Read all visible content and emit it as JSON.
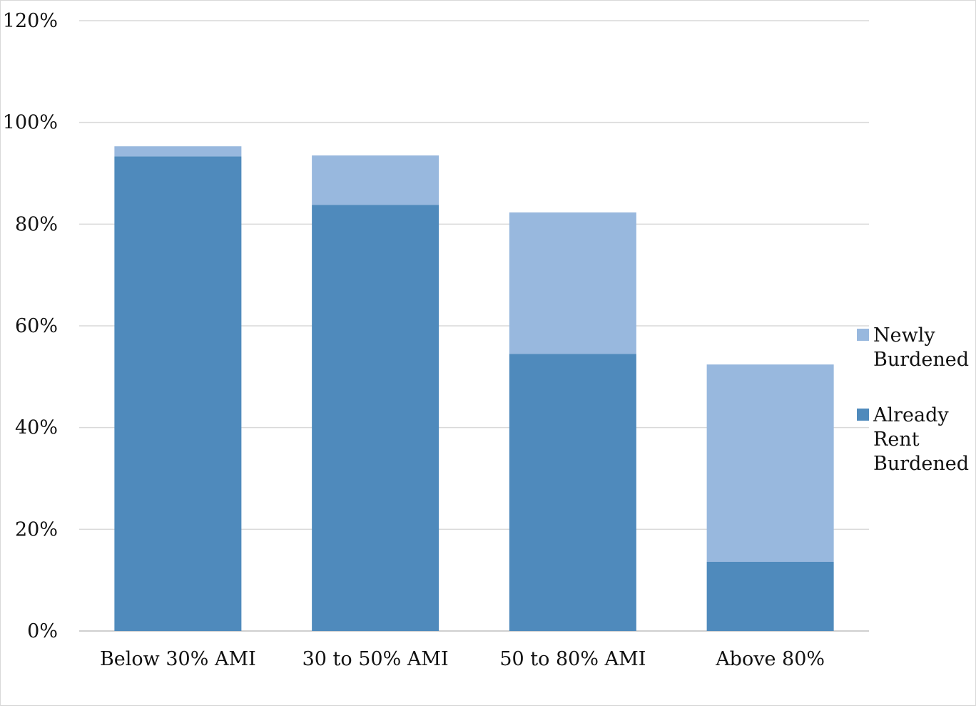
{
  "chart_data": {
    "type": "bar",
    "stacked": true,
    "categories": [
      "Below 30% AMI",
      "30 to 50% AMI",
      "50 to 80% AMI",
      "Above 80%"
    ],
    "series": [
      {
        "name": "Already Rent Burdened",
        "color": "#4f8abc",
        "values": [
          93.3,
          83.8,
          54.5,
          13.6
        ]
      },
      {
        "name": "Newly Burdened",
        "color": "#98b8de",
        "values": [
          2.0,
          9.7,
          27.8,
          38.8
        ]
      }
    ],
    "title": "",
    "xlabel": "",
    "ylabel": "",
    "ylim": [
      0,
      120
    ],
    "yticks": [
      "0%",
      "20%",
      "40%",
      "60%",
      "80%",
      "100%",
      "120%"
    ],
    "grid": true,
    "legend_position": "right",
    "legend": [
      {
        "series": "Newly Burdened",
        "lines": [
          "Newly",
          "Burdened"
        ]
      },
      {
        "series": "Already Rent Burdened",
        "lines": [
          "Already",
          "Rent",
          "Burdened"
        ]
      }
    ]
  }
}
